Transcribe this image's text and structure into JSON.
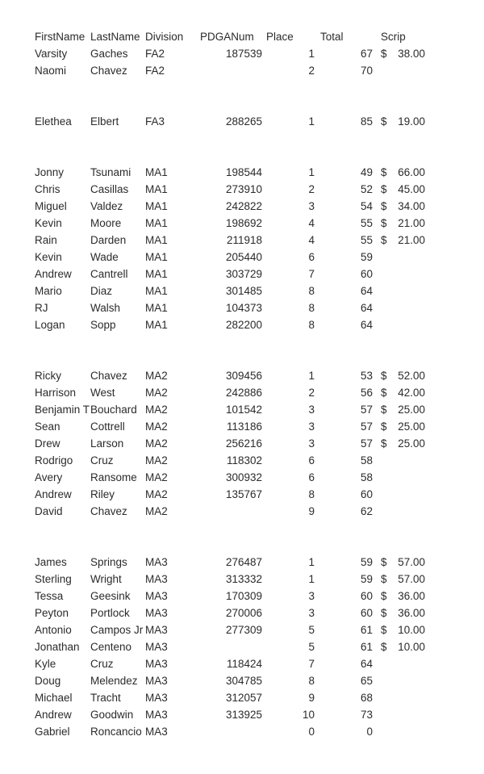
{
  "page": {
    "background_color": "#ffffff",
    "text_color": "#2b2b2b"
  },
  "table": {
    "headers": {
      "first": "FirstName",
      "last": "LastName",
      "division": "Division",
      "pdga": "PDGANum",
      "place": "Place",
      "total": "Total",
      "scrip": "Scrip"
    },
    "currency_symbol": "$",
    "rows": [
      {
        "first": "Varsity",
        "last": "Gaches",
        "division": "FA2",
        "pdga": "187539",
        "place": "1",
        "total": "67",
        "scrip": "38.00"
      },
      {
        "first": "Naomi",
        "last": "Chavez",
        "division": "FA2",
        "pdga": "",
        "place": "2",
        "total": "70",
        "scrip": ""
      },
      {
        "blank": true
      },
      {
        "blank": true
      },
      {
        "first": "Elethea",
        "last": "Elbert",
        "division": "FA3",
        "pdga": "288265",
        "place": "1",
        "total": "85",
        "scrip": "19.00"
      },
      {
        "blank": true
      },
      {
        "blank": true
      },
      {
        "first": "Jonny",
        "last": "Tsunami",
        "division": "MA1",
        "pdga": "198544",
        "place": "1",
        "total": "49",
        "scrip": "66.00"
      },
      {
        "first": "Chris",
        "last": "Casillas",
        "division": "MA1",
        "pdga": "273910",
        "place": "2",
        "total": "52",
        "scrip": "45.00"
      },
      {
        "first": "Miguel",
        "last": "Valdez",
        "division": "MA1",
        "pdga": "242822",
        "place": "3",
        "total": "54",
        "scrip": "34.00"
      },
      {
        "first": "Kevin",
        "last": "Moore",
        "division": "MA1",
        "pdga": "198692",
        "place": "4",
        "total": "55",
        "scrip": "21.00"
      },
      {
        "first": "Rain",
        "last": "Darden",
        "division": "MA1",
        "pdga": "211918",
        "place": "4",
        "total": "55",
        "scrip": "21.00"
      },
      {
        "first": "Kevin",
        "last": "Wade",
        "division": "MA1",
        "pdga": "205440",
        "place": "6",
        "total": "59",
        "scrip": ""
      },
      {
        "first": "Andrew",
        "last": "Cantrell",
        "division": "MA1",
        "pdga": "303729",
        "place": "7",
        "total": "60",
        "scrip": ""
      },
      {
        "first": "Mario",
        "last": "Diaz",
        "division": "MA1",
        "pdga": "301485",
        "place": "8",
        "total": "64",
        "scrip": ""
      },
      {
        "first": "RJ",
        "last": "Walsh",
        "division": "MA1",
        "pdga": "104373",
        "place": "8",
        "total": "64",
        "scrip": ""
      },
      {
        "first": "Logan",
        "last": "Sopp",
        "division": "MA1",
        "pdga": "282200",
        "place": "8",
        "total": "64",
        "scrip": ""
      },
      {
        "blank": true
      },
      {
        "blank": true
      },
      {
        "first": "Ricky",
        "last": "Chavez",
        "division": "MA2",
        "pdga": "309456",
        "place": "1",
        "total": "53",
        "scrip": "52.00"
      },
      {
        "first": "Harrison",
        "last": "West",
        "division": "MA2",
        "pdga": "242886",
        "place": "2",
        "total": "56",
        "scrip": "42.00"
      },
      {
        "first": "Benjamin T",
        "last": "Bouchard",
        "division": "MA2",
        "pdga": "101542",
        "place": "3",
        "total": "57",
        "scrip": "25.00"
      },
      {
        "first": "Sean",
        "last": "Cottrell",
        "division": "MA2",
        "pdga": "113186",
        "place": "3",
        "total": "57",
        "scrip": "25.00"
      },
      {
        "first": "Drew",
        "last": "Larson",
        "division": "MA2",
        "pdga": "256216",
        "place": "3",
        "total": "57",
        "scrip": "25.00"
      },
      {
        "first": "Rodrigo",
        "last": "Cruz",
        "division": "MA2",
        "pdga": "118302",
        "place": "6",
        "total": "58",
        "scrip": ""
      },
      {
        "first": "Avery",
        "last": "Ransome",
        "division": "MA2",
        "pdga": "300932",
        "place": "6",
        "total": "58",
        "scrip": ""
      },
      {
        "first": "Andrew",
        "last": "Riley",
        "division": "MA2",
        "pdga": "135767",
        "place": "8",
        "total": "60",
        "scrip": ""
      },
      {
        "first": "David",
        "last": "Chavez",
        "division": "MA2",
        "pdga": "",
        "place": "9",
        "total": "62",
        "scrip": ""
      },
      {
        "blank": true
      },
      {
        "blank": true
      },
      {
        "first": "James",
        "last": "Springs",
        "division": "MA3",
        "pdga": "276487",
        "place": "1",
        "total": "59",
        "scrip": "57.00"
      },
      {
        "first": "Sterling",
        "last": "Wright",
        "division": "MA3",
        "pdga": "313332",
        "place": "1",
        "total": "59",
        "scrip": "57.00"
      },
      {
        "first": "Tessa",
        "last": "Geesink",
        "division": "MA3",
        "pdga": "170309",
        "place": "3",
        "total": "60",
        "scrip": "36.00"
      },
      {
        "first": "Peyton",
        "last": "Portlock",
        "division": "MA3",
        "pdga": "270006",
        "place": "3",
        "total": "60",
        "scrip": "36.00"
      },
      {
        "first": "Antonio",
        "last": "Campos Jr",
        "division": "MA3",
        "pdga": "277309",
        "place": "5",
        "total": "61",
        "scrip": "10.00"
      },
      {
        "first": "Jonathan",
        "last": "Centeno",
        "division": "MA3",
        "pdga": "",
        "place": "5",
        "total": "61",
        "scrip": "10.00"
      },
      {
        "first": "Kyle",
        "last": "Cruz",
        "division": "MA3",
        "pdga": "118424",
        "place": "7",
        "total": "64",
        "scrip": ""
      },
      {
        "first": "Doug",
        "last": "Melendez",
        "division": "MA3",
        "pdga": "304785",
        "place": "8",
        "total": "65",
        "scrip": ""
      },
      {
        "first": "Michael",
        "last": "Tracht",
        "division": "MA3",
        "pdga": "312057",
        "place": "9",
        "total": "68",
        "scrip": ""
      },
      {
        "first": "Andrew",
        "last": "Goodwin",
        "division": "MA3",
        "pdga": "313925",
        "place": "10",
        "total": "73",
        "scrip": ""
      },
      {
        "first": "Gabriel",
        "last": "Roncancio",
        "division": "MA3",
        "pdga": "",
        "place": "0",
        "total": "0",
        "scrip": ""
      }
    ]
  }
}
